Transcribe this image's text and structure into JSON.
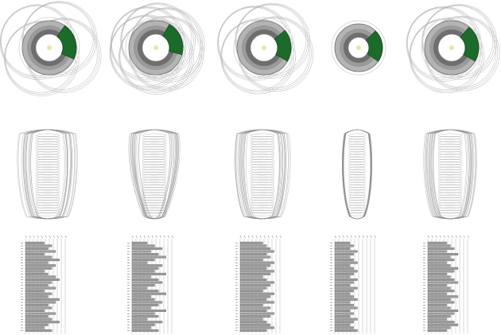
{
  "figure": {
    "columns": 5,
    "rows": [
      "plan-rings",
      "elevation-shell",
      "stacking-bars"
    ],
    "colors": {
      "ring_light": "#d9d9d9",
      "ring_mid": "#b4b4b4",
      "ring_dark": "#6e6e6e",
      "line": "#8c8c8c",
      "highlight": "#1c6b2a",
      "center_dot": "#e8e6a8"
    },
    "variants": [
      {
        "id": "v1",
        "offsets": 4,
        "spread": 1.0,
        "sector_start": -55,
        "sector_end": 25,
        "bar_profile": [
          5,
          7,
          6,
          8,
          5,
          7,
          9,
          6,
          8,
          7,
          5,
          6,
          8,
          9,
          7,
          6,
          8,
          5,
          7,
          6,
          9,
          8,
          6,
          7,
          5,
          8,
          6,
          7,
          9,
          6,
          5,
          7
        ]
      },
      {
        "id": "v2",
        "offsets": 6,
        "spread": 0.7,
        "sector_start": -60,
        "sector_end": 15,
        "bar_profile": [
          4,
          6,
          8,
          5,
          7,
          9,
          6,
          4,
          8,
          7,
          6,
          9,
          5,
          7,
          8,
          6,
          4,
          7,
          9,
          5,
          6,
          8,
          7,
          5,
          9,
          6,
          7,
          4,
          8,
          6,
          5,
          7
        ]
      },
      {
        "id": "v3",
        "offsets": 4,
        "spread": 0.8,
        "sector_start": -40,
        "sector_end": 30,
        "bar_profile": [
          6,
          7,
          8,
          9,
          7,
          8,
          6,
          9,
          8,
          7,
          9,
          8,
          6,
          7,
          9,
          8,
          7,
          6,
          9,
          8,
          7,
          9,
          6,
          8,
          7,
          9,
          8,
          6,
          7,
          8,
          9,
          7
        ]
      },
      {
        "id": "v4",
        "offsets": 0,
        "spread": 0.0,
        "sector_start": -45,
        "sector_end": 35,
        "bar_profile": [
          4,
          5,
          4,
          6,
          5,
          4,
          5,
          6,
          4,
          5,
          6,
          5,
          4,
          6,
          5,
          4,
          6,
          5,
          4,
          5,
          6,
          4,
          5,
          6,
          4,
          5,
          4,
          6,
          5,
          4,
          5,
          6
        ]
      },
      {
        "id": "v5",
        "offsets": 4,
        "spread": 0.7,
        "sector_start": -50,
        "sector_end": 30,
        "bar_profile": [
          5,
          6,
          7,
          5,
          8,
          6,
          7,
          5,
          6,
          8,
          7,
          5,
          6,
          7,
          8,
          5,
          6,
          7,
          5,
          8,
          6,
          7,
          5,
          6,
          8,
          7,
          6,
          5,
          7,
          8,
          6,
          5
        ]
      }
    ]
  }
}
